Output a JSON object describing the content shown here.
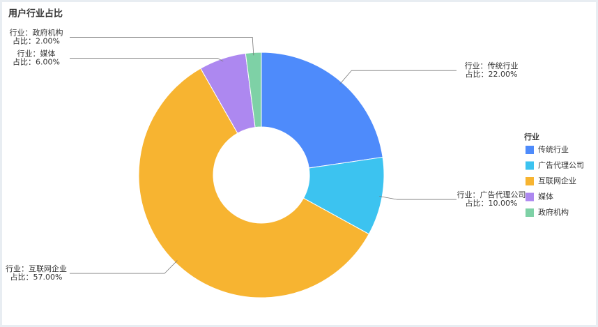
{
  "chart_data": {
    "type": "pie",
    "title": "用户行业占比",
    "categories": [
      "传统行业",
      "广告代理公司",
      "互联网企业",
      "媒体",
      "政府机构"
    ],
    "values": [
      22,
      10,
      57,
      6,
      2
    ],
    "value_labels": [
      "22.00%",
      "10.00%",
      "57.00%",
      "6.00%",
      "2.00%"
    ],
    "colors": [
      "#4e8bfb",
      "#3cc3f0",
      "#f7b431",
      "#ad88f0",
      "#7ed1a6"
    ],
    "label_prefixes": {
      "category": "行业：",
      "value": "占比："
    },
    "legend_title": "行业",
    "legend": "right",
    "donut": true
  }
}
